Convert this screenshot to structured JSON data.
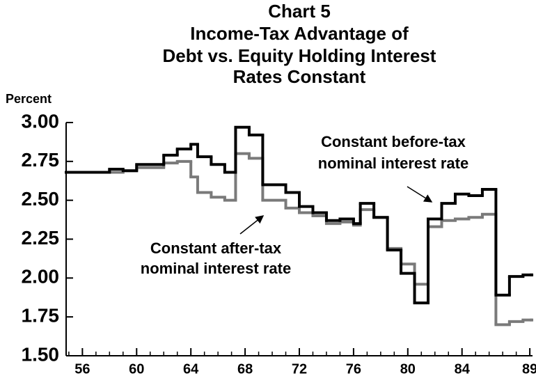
{
  "chart_data": {
    "type": "line",
    "title": [
      "Chart 5",
      "Income-Tax Advantage of",
      "Debt vs. Equity Holding Interest",
      "Rates Constant"
    ],
    "y_label": "Percent",
    "x": [
      54.8,
      58,
      59,
      60,
      62,
      63,
      64,
      64.5,
      65.5,
      66.5,
      67.3,
      68.3,
      69.3,
      71,
      72,
      73,
      74,
      75,
      76,
      76.5,
      77.5,
      78.5,
      79.5,
      80.5,
      81.5,
      82.5,
      83.5,
      84.5,
      85.5,
      86.5,
      87.5,
      88.5,
      89.1
    ],
    "series": [
      {
        "name": "Constant before-tax nominal interest rate",
        "color": "#000000",
        "values": [
          2.68,
          2.7,
          2.69,
          2.73,
          2.79,
          2.83,
          2.86,
          2.78,
          2.73,
          2.68,
          2.97,
          2.92,
          2.6,
          2.55,
          2.46,
          2.42,
          2.37,
          2.38,
          2.35,
          2.48,
          2.39,
          2.18,
          2.03,
          1.84,
          2.38,
          2.48,
          2.54,
          2.53,
          2.57,
          1.89,
          2.01,
          2.02,
          2.02
        ]
      },
      {
        "name": "Constant after-tax nominal interest rate",
        "color": "#7a7a7a",
        "values": [
          2.68,
          2.68,
          2.69,
          2.71,
          2.74,
          2.75,
          2.65,
          2.55,
          2.52,
          2.5,
          2.8,
          2.77,
          2.5,
          2.45,
          2.42,
          2.4,
          2.35,
          2.36,
          2.34,
          2.44,
          2.39,
          2.19,
          2.09,
          1.96,
          2.33,
          2.37,
          2.38,
          2.39,
          2.41,
          1.7,
          1.72,
          1.73,
          1.73
        ]
      }
    ],
    "annotations": [
      [
        "Constant before-tax",
        "nominal interest rate"
      ],
      [
        "Constant after-tax",
        "nominal interest rate"
      ]
    ],
    "xlim": [
      54.8,
      89.2
    ],
    "xticks": [
      56,
      60,
      64,
      68,
      72,
      76,
      80,
      84,
      89
    ],
    "ylim": [
      1.5,
      3.0
    ],
    "yticks": [
      {
        "value": 1.5,
        "label": "1.50"
      },
      {
        "value": 1.75,
        "label": "1.75"
      },
      {
        "value": 2,
        "label": "2.00"
      },
      {
        "value": 2.25,
        "label": "2.25"
      },
      {
        "value": 2.5,
        "label": "2.50"
      },
      {
        "value": 2.75,
        "label": "2.75"
      },
      {
        "value": 3,
        "label": "3.00"
      }
    ],
    "step": true
  }
}
